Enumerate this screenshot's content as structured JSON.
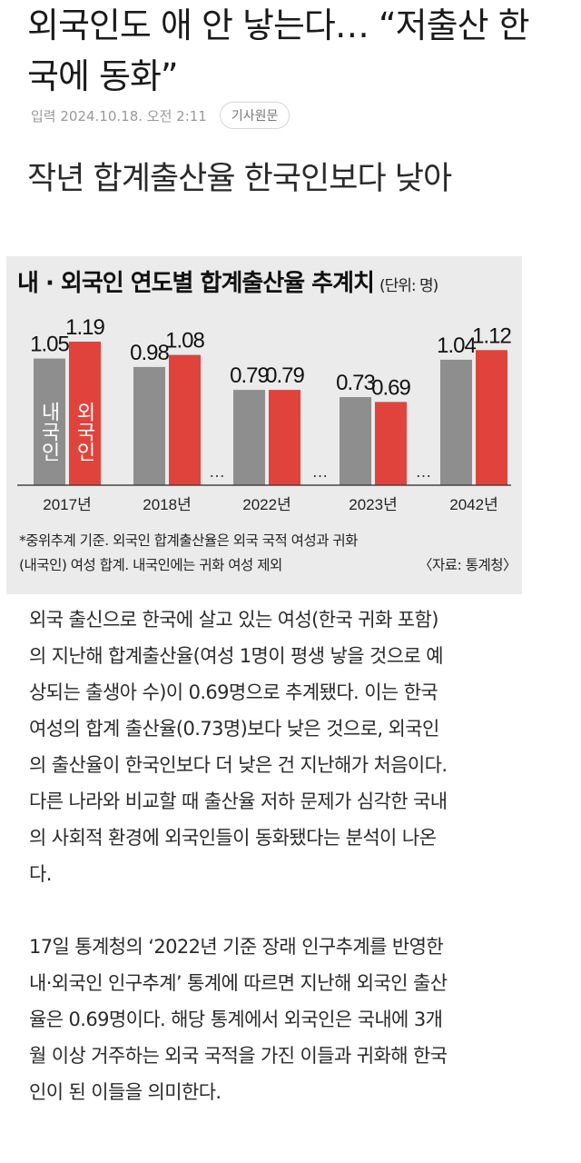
{
  "article": {
    "headline_lines": [
      "외국인도 애 안 낳는다… “저출산 한",
      "국에 동화”"
    ],
    "date": "입력 2024.10.18. 오전 2:11",
    "original_link": "기사원문",
    "subheading": "작년 합계출산율 한국인보다 낮아"
  },
  "chart": {
    "title": "내 · 외국인 연도별 합계출산율 추계치",
    "unit": "(단위: 명)",
    "colors": {
      "native": "#8e8e8e",
      "foreign": "#e0433b",
      "background": "#ebebeb"
    },
    "note_lines": [
      "*중위추계 기준. 외국인 합계출산율은 외국 국적 여성과 귀화",
      "(내국인) 여성 합계. 내국인에는 귀화 여성 제외"
    ],
    "source": "〈자료: 통계청〉"
  },
  "chart_data": {
    "type": "bar",
    "categories": [
      "2017년",
      "2018년",
      "2022년",
      "2023년",
      "2042년"
    ],
    "series": [
      {
        "name": "내국인",
        "values": [
          1.05,
          0.98,
          0.79,
          0.73,
          1.04
        ]
      },
      {
        "name": "외국인",
        "values": [
          1.19,
          1.08,
          0.79,
          0.69,
          1.12
        ]
      }
    ],
    "value_labels": [
      [
        "1.05",
        "0.98",
        "0.79",
        "0.73",
        "1.04"
      ],
      [
        "1.19",
        "1.08",
        "0.79",
        "0.69",
        "1.12"
      ]
    ],
    "gap_markers": [
      "…",
      "…",
      "…"
    ],
    "title": "내 · 외국인 연도별 합계출산율 추계치",
    "xlabel": "",
    "ylabel": "",
    "ylim": [
      0,
      1.19
    ],
    "legend": "inside-first-bars"
  },
  "body": {
    "paragraphs": [
      [
        "외국 출신으로 한국에 살고 있는 여성(한국 귀화 포함)",
        "의 지난해 합계출산율(여성 1명이 평생 낳을 것으로 예",
        "상되는 출생아 수)이 0.69명으로 추계됐다. 이는 한국",
        "여성의 합계 출산율(0.73명)보다 낮은 것으로, 외국인",
        "의 출산율이 한국인보다 더 낮은 건 지난해가 처음이다.",
        "다른 나라와 비교할 때 출산율 저하 문제가 심각한 국내",
        "의 사회적 환경에 외국인들이 동화됐다는 분석이 나온",
        "다."
      ],
      [
        "17일 통계청의 ‘2022년 기준 장래 인구추계를 반영한",
        "내·외국인 인구추계’ 통계에 따르면 지난해 외국인 출산",
        "율은 0.69명이다. 해당 통계에서 외국인은 국내에 3개",
        "월 이상 거주하는 외국 국적을 가진 이들과 귀화해 한국",
        "인이 된 이들을 의미한다."
      ]
    ]
  }
}
